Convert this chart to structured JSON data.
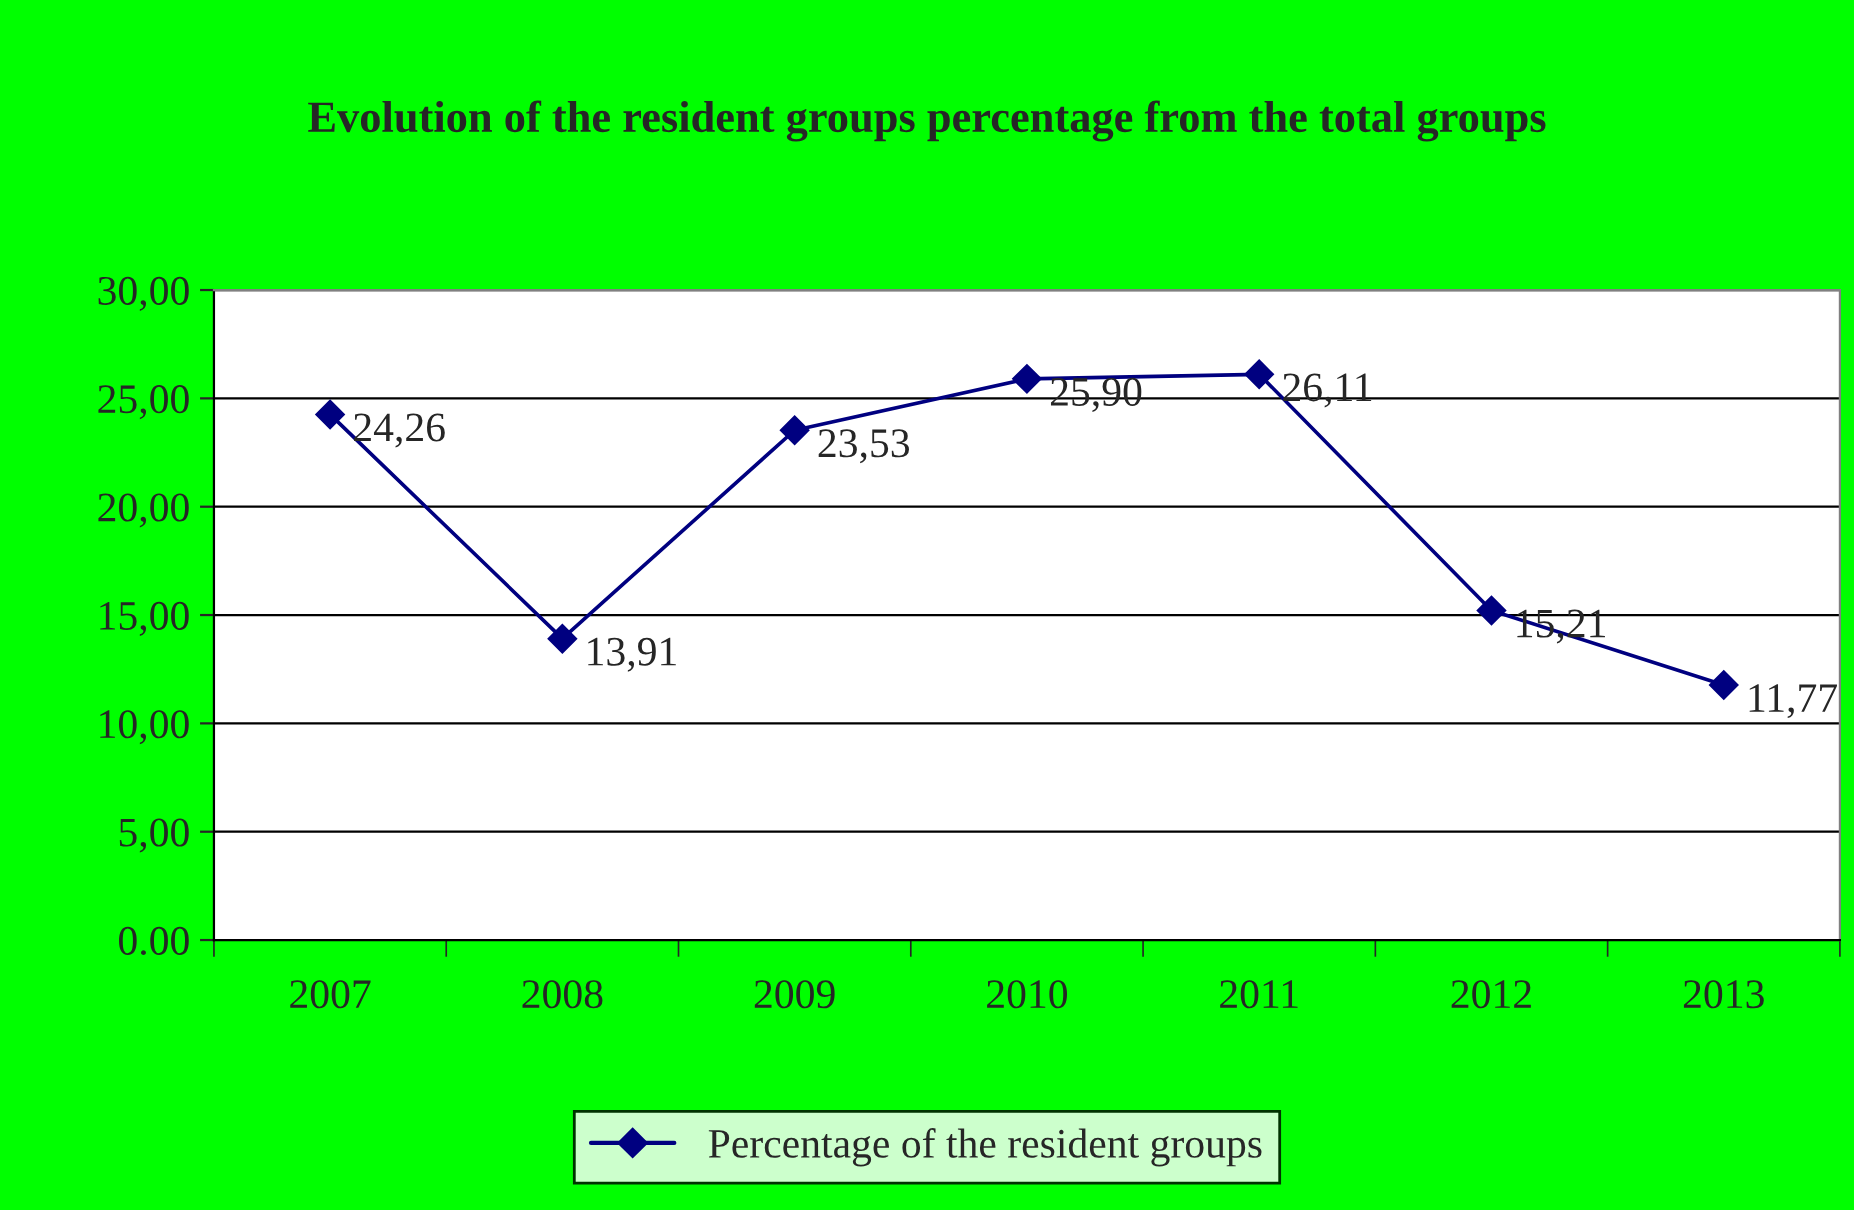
{
  "chart_data": {
    "type": "line",
    "title": "Evolution of the resident groups percentage from the total groups",
    "categories": [
      "2007",
      "2008",
      "2009",
      "2010",
      "2011",
      "2012",
      "2013"
    ],
    "series": [
      {
        "name": "Percentage of the resident groups",
        "color": "#000080",
        "values": [
          24.26,
          13.91,
          23.53,
          25.9,
          26.11,
          15.21,
          11.77
        ],
        "value_labels": [
          "24,26",
          "13,91",
          "23,53",
          "25,90",
          "26,11",
          "15,21",
          "11,77"
        ]
      }
    ],
    "ylim": [
      0,
      30
    ],
    "yticks": [
      {
        "value": 0,
        "label": "0.00"
      },
      {
        "value": 5,
        "label": "5,00"
      },
      {
        "value": 10,
        "label": "10,00"
      },
      {
        "value": 15,
        "label": "15,00"
      },
      {
        "value": 20,
        "label": "20,00"
      },
      {
        "value": 25,
        "label": "25,00"
      },
      {
        "value": 30,
        "label": "30,00"
      }
    ],
    "grid": "y",
    "legend": "bottom",
    "marker": "diamond",
    "line_style": "solid"
  }
}
